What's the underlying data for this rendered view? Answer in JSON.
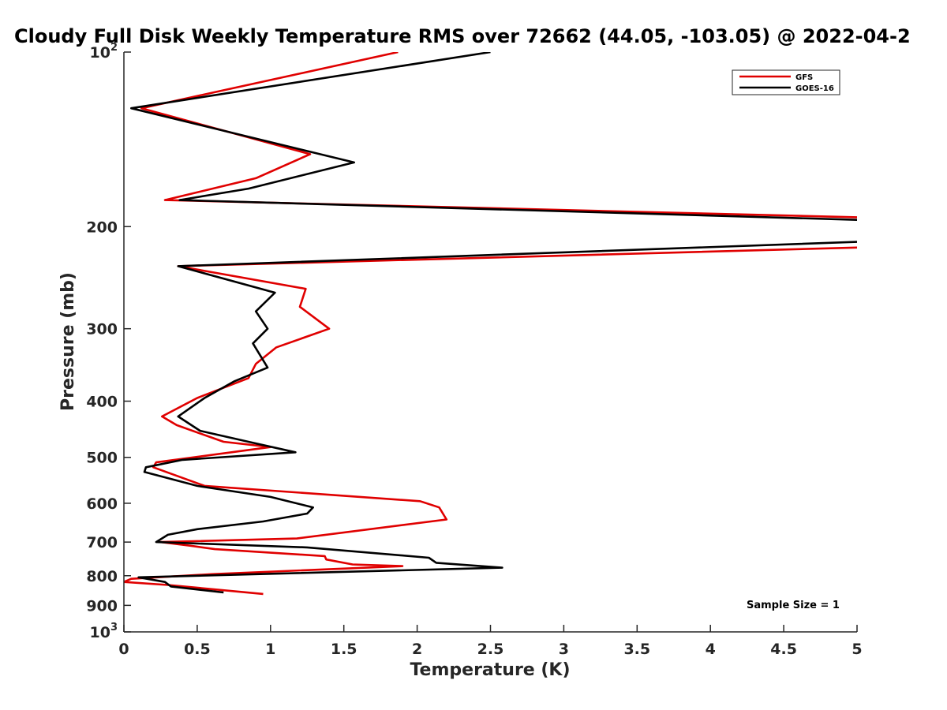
{
  "chart_data": {
    "type": "line",
    "title": "Cloudy Full Disk Weekly Temperature RMS over 72662 (44.05, -103.05) @ 2022-04-2",
    "xlabel": "Temperature (K)",
    "ylabel": "Pressure (mb)",
    "xlim": [
      0,
      5
    ],
    "ylim": [
      100,
      1000
    ],
    "yscale": "log",
    "y_reversed": true,
    "x_ticks": [
      "0",
      "0.5",
      "1",
      "1.5",
      "2",
      "2.5",
      "3",
      "3.5",
      "4",
      "4.5",
      "5"
    ],
    "y_ticks": [
      {
        "value": 100,
        "label": "10",
        "sup": "2"
      },
      {
        "value": 200,
        "label": "200",
        "sup": ""
      },
      {
        "value": 300,
        "label": "300",
        "sup": ""
      },
      {
        "value": 400,
        "label": "400",
        "sup": ""
      },
      {
        "value": 500,
        "label": "500",
        "sup": ""
      },
      {
        "value": 600,
        "label": "600",
        "sup": ""
      },
      {
        "value": 700,
        "label": "700",
        "sup": ""
      },
      {
        "value": 800,
        "label": "800",
        "sup": ""
      },
      {
        "value": 900,
        "label": "900",
        "sup": ""
      },
      {
        "value": 1000,
        "label": "10",
        "sup": "3"
      }
    ],
    "grid": false,
    "legend_position": "top-right",
    "annotation": "Sample Size = 1",
    "series": [
      {
        "name": "GFS",
        "color": "#e00000",
        "points": [
          [
            1.87,
            100
          ],
          [
            0.12,
            125
          ],
          [
            1.27,
            150
          ],
          [
            0.9,
            165
          ],
          [
            0.28,
            180
          ],
          [
            5.1,
            193
          ],
          [
            5.1,
            217
          ],
          [
            0.37,
            234
          ],
          [
            1.24,
            256
          ],
          [
            1.2,
            275
          ],
          [
            1.4,
            300
          ],
          [
            1.04,
            323
          ],
          [
            0.9,
            345
          ],
          [
            0.85,
            365
          ],
          [
            0.5,
            395
          ],
          [
            0.26,
            425
          ],
          [
            0.36,
            440
          ],
          [
            0.68,
            470
          ],
          [
            1.0,
            480
          ],
          [
            0.22,
            510
          ],
          [
            0.2,
            520
          ],
          [
            0.55,
            560
          ],
          [
            2.02,
            595
          ],
          [
            2.15,
            610
          ],
          [
            2.2,
            640
          ],
          [
            1.18,
            690
          ],
          [
            0.25,
            700
          ],
          [
            0.45,
            710
          ],
          [
            0.62,
            720
          ],
          [
            1.37,
            740
          ],
          [
            1.38,
            750
          ],
          [
            1.56,
            765
          ],
          [
            1.9,
            770
          ],
          [
            0.6,
            795
          ],
          [
            0.05,
            810
          ],
          [
            0.0,
            820
          ],
          [
            0.3,
            830
          ],
          [
            0.95,
            860
          ]
        ]
      },
      {
        "name": "GOES-16",
        "color": "#000000",
        "points": [
          [
            2.5,
            100
          ],
          [
            0.05,
            125
          ],
          [
            1.57,
            155
          ],
          [
            0.85,
            172
          ],
          [
            0.38,
            180
          ],
          [
            5.1,
            195
          ],
          [
            5.1,
            212
          ],
          [
            0.37,
            234
          ],
          [
            1.03,
            260
          ],
          [
            0.9,
            280
          ],
          [
            0.98,
            300
          ],
          [
            0.88,
            318
          ],
          [
            0.98,
            350
          ],
          [
            0.75,
            370
          ],
          [
            0.55,
            395
          ],
          [
            0.37,
            425
          ],
          [
            0.52,
            450
          ],
          [
            0.85,
            470
          ],
          [
            1.17,
            490
          ],
          [
            0.4,
            505
          ],
          [
            0.15,
            520
          ],
          [
            0.14,
            530
          ],
          [
            0.5,
            560
          ],
          [
            1.0,
            585
          ],
          [
            1.29,
            610
          ],
          [
            1.25,
            625
          ],
          [
            0.95,
            645
          ],
          [
            0.5,
            665
          ],
          [
            0.3,
            680
          ],
          [
            0.22,
            700
          ],
          [
            1.25,
            715
          ],
          [
            2.08,
            745
          ],
          [
            2.13,
            760
          ],
          [
            2.58,
            775
          ],
          [
            0.1,
            805
          ],
          [
            0.28,
            820
          ],
          [
            0.32,
            835
          ],
          [
            0.68,
            855
          ]
        ]
      }
    ]
  }
}
